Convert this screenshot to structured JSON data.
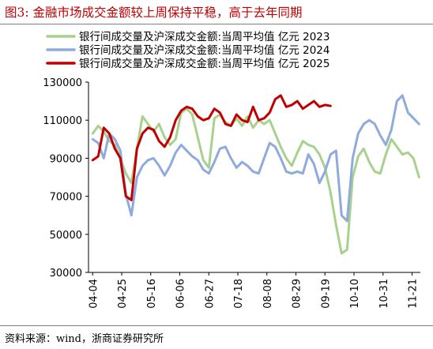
{
  "header": {
    "title": "图3:  金融市场成交金额较上周保持平稳，高于去年同期"
  },
  "footer": {
    "source": "资料来源：wind，浙商证券研究所"
  },
  "colors": {
    "series_2023": "#a9d18e",
    "series_2024": "#8faadc",
    "series_2025": "#c00000"
  },
  "chart_data": {
    "type": "line",
    "title": "",
    "xlabel": "",
    "ylabel": "",
    "ylim": [
      30000,
      130000
    ],
    "yticks": [
      30000,
      50000,
      70000,
      90000,
      110000,
      130000
    ],
    "ytick_labels": [
      "30000",
      "50000",
      "70000",
      "90000",
      "110000",
      "130000"
    ],
    "x_ticks": [
      "04-04",
      "04-25",
      "05-16",
      "06-06",
      "06-27",
      "07-18",
      "08-08",
      "08-29",
      "09-19",
      "10-10",
      "10-31",
      "11-21"
    ],
    "grid": false,
    "legend_position": "top",
    "series": [
      {
        "name": "银行间成交量及沪深成交金额:当周平均值  亿元  2023",
        "color": "#a9d18e",
        "x": [
          "04-04",
          "04-08",
          "04-12",
          "04-16",
          "04-20",
          "04-24",
          "04-28",
          "05-02",
          "05-06",
          "05-10",
          "05-14",
          "05-18",
          "05-22",
          "05-26",
          "05-30",
          "06-03",
          "06-07",
          "06-11",
          "06-15",
          "06-19",
          "06-23",
          "06-27",
          "07-01",
          "07-05",
          "07-09",
          "07-13",
          "07-17",
          "07-21",
          "07-25",
          "07-29",
          "08-02",
          "08-06",
          "08-10",
          "08-14",
          "08-18",
          "08-22",
          "08-26",
          "08-30",
          "09-03",
          "09-07",
          "09-11",
          "09-15",
          "09-19",
          "09-23",
          "09-27",
          "10-01",
          "10-05",
          "10-09",
          "10-13",
          "10-17",
          "10-21",
          "10-25",
          "10-29",
          "11-02",
          "11-06",
          "11-10",
          "11-14",
          "11-18",
          "11-22",
          "11-26"
        ],
        "values": [
          103000,
          107000,
          104000,
          99000,
          97000,
          90000,
          82000,
          77000,
          95000,
          112000,
          108000,
          104000,
          108000,
          101000,
          97000,
          100000,
          114000,
          116000,
          113000,
          101000,
          89000,
          85000,
          111000,
          113000,
          109000,
          107000,
          111000,
          107000,
          112000,
          106000,
          110000,
          108000,
          110000,
          103000,
          96000,
          90000,
          86000,
          93000,
          99000,
          97000,
          96000,
          92000,
          85000,
          72000,
          55000,
          40000,
          42000,
          80000,
          91000,
          95000,
          88000,
          83000,
          82000,
          92000,
          100000,
          96000,
          92000,
          93000,
          90000,
          80000
        ]
      },
      {
        "name": "银行间成交量及沪深成交金额:当周平均值  亿元  2024",
        "color": "#8faadc",
        "x": [
          "04-04",
          "04-08",
          "04-12",
          "04-16",
          "04-20",
          "04-24",
          "04-28",
          "05-02",
          "05-06",
          "05-10",
          "05-14",
          "05-18",
          "05-22",
          "05-26",
          "05-30",
          "06-03",
          "06-07",
          "06-11",
          "06-15",
          "06-19",
          "06-23",
          "06-27",
          "07-01",
          "07-05",
          "07-09",
          "07-13",
          "07-17",
          "07-21",
          "07-25",
          "07-29",
          "08-02",
          "08-06",
          "08-10",
          "08-14",
          "08-18",
          "08-22",
          "08-26",
          "08-30",
          "09-03",
          "09-07",
          "09-11",
          "09-15",
          "09-19",
          "09-23",
          "09-27",
          "10-01",
          "10-05",
          "10-09",
          "10-13",
          "10-17",
          "10-21",
          "10-25",
          "10-29",
          "11-02",
          "11-06",
          "11-10",
          "11-14",
          "11-18",
          "11-22",
          "11-26"
        ],
        "values": [
          100000,
          98000,
          90000,
          103000,
          100000,
          94000,
          71000,
          60000,
          80000,
          86000,
          89000,
          90000,
          86000,
          81000,
          86000,
          93000,
          97000,
          94000,
          91000,
          89000,
          84000,
          82000,
          88000,
          95000,
          96000,
          90000,
          85000,
          88000,
          86000,
          83000,
          82000,
          90000,
          98000,
          96000,
          90000,
          83000,
          82000,
          83000,
          82000,
          92000,
          87000,
          77000,
          83000,
          92000,
          94000,
          60000,
          57000,
          90000,
          103000,
          108000,
          110000,
          108000,
          102000,
          97000,
          105000,
          120000,
          123000,
          114000,
          111000,
          108000
        ]
      },
      {
        "name": "银行间成交量及沪深成交金额:当周平均值  亿元  2025",
        "color": "#c00000",
        "x": [
          "04-04",
          "04-08",
          "04-12",
          "04-16",
          "04-20",
          "04-24",
          "04-28",
          "05-02",
          "05-06",
          "05-10",
          "05-14",
          "05-18",
          "05-22",
          "05-26",
          "05-30",
          "06-03",
          "06-07",
          "06-11",
          "06-15",
          "06-19",
          "06-23",
          "06-27",
          "07-01",
          "07-05",
          "07-09",
          "07-13",
          "07-17",
          "07-21",
          "07-25",
          "07-29",
          "08-02",
          "08-06",
          "08-10",
          "08-14",
          "08-18",
          "08-22",
          "08-26",
          "08-30",
          "09-03",
          "09-07",
          "09-11",
          "09-15",
          "09-19",
          "09-23"
        ],
        "values": [
          89000,
          91000,
          106000,
          103000,
          95000,
          90000,
          70000,
          68000,
          95000,
          103000,
          106000,
          105000,
          99000,
          96000,
          101000,
          110000,
          115000,
          117000,
          116000,
          112000,
          110000,
          111000,
          116000,
          114000,
          108000,
          107000,
          113000,
          110000,
          109000,
          117000,
          110000,
          111000,
          114000,
          121000,
          123000,
          117000,
          118000,
          120000,
          116000,
          118000,
          120000,
          117000,
          118000,
          117500
        ]
      }
    ]
  }
}
